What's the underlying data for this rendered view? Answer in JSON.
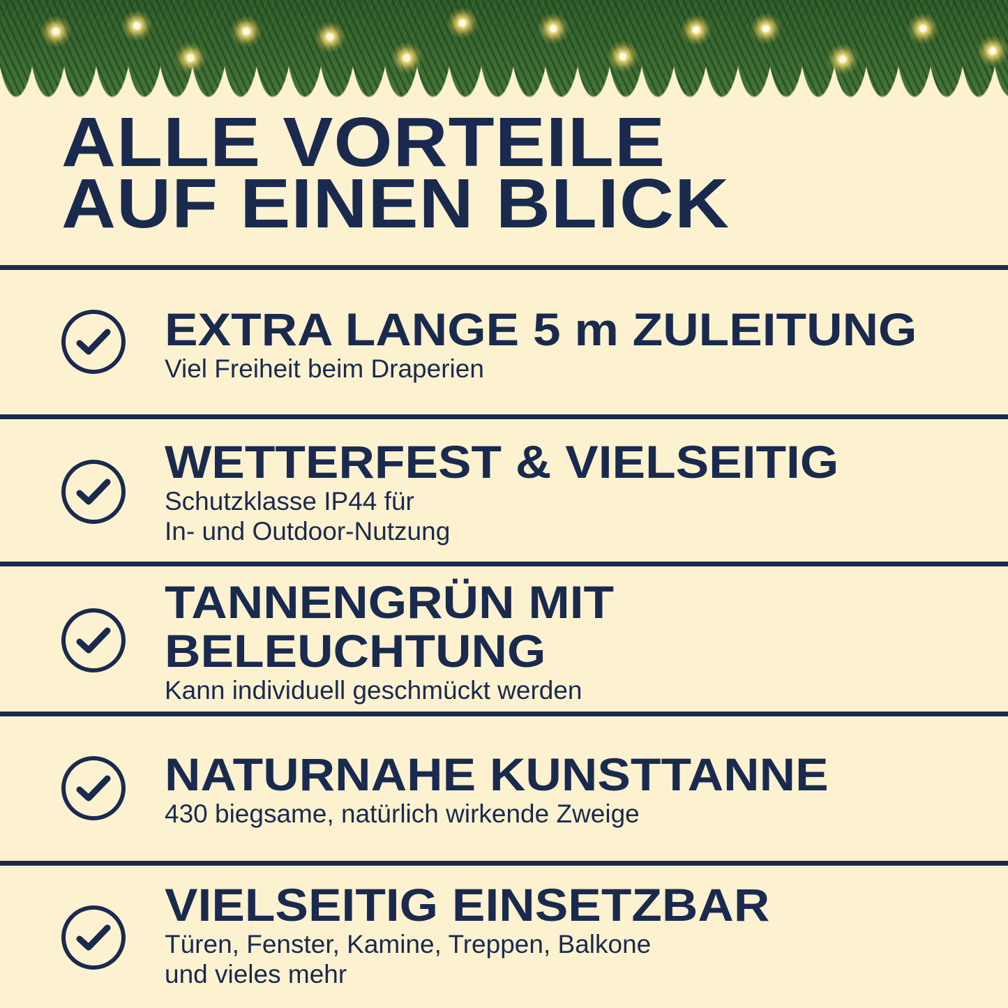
{
  "colors": {
    "background": "#fdf2d0",
    "navy": "#1a2a4f"
  },
  "title": {
    "line1": "ALLE VORTEILE",
    "line2": "AUF EINEN BLICK"
  },
  "items": [
    {
      "icon": "check-circle-icon",
      "heading": [
        "EXTRA LANGE 5 m ZULEITUNG"
      ],
      "sub": [
        "Viel Freiheit beim Draperien"
      ]
    },
    {
      "icon": "check-circle-icon",
      "heading": [
        "WETTERFEST & VIELSEITIG"
      ],
      "sub": [
        "Schutzklasse IP44 für",
        "In- und Outdoor-Nutzung"
      ]
    },
    {
      "icon": "check-circle-icon",
      "heading": [
        "TANNENGRÜN MIT",
        "BELEUCHTUNG"
      ],
      "sub": [
        "Kann individuell geschmückt werden"
      ]
    },
    {
      "icon": "check-circle-icon",
      "heading": [
        "NATURNAHE KUNSTTANNE"
      ],
      "sub": [
        "430 biegsame, natürlich wirkende Zweige"
      ]
    },
    {
      "icon": "check-circle-icon",
      "heading": [
        "VIELSEITIG EINSETZBAR"
      ],
      "sub": [
        "Türen, Fenster, Kamine, Treppen, Balkone",
        "und vieles mehr"
      ]
    }
  ]
}
